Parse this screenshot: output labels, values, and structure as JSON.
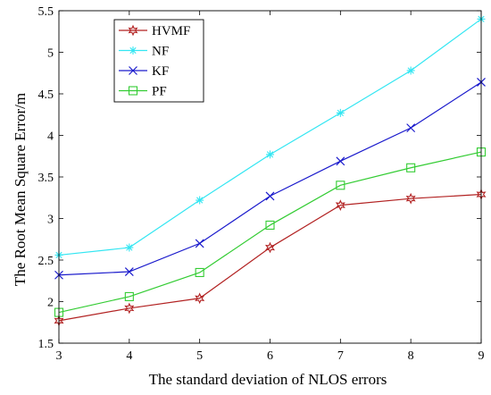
{
  "chart_data": {
    "type": "line",
    "title": "",
    "xlabel": "The standard deviation of NLOS errors",
    "ylabel": "The Root Mean Square Error/m",
    "x": [
      3,
      4,
      5,
      6,
      7,
      8,
      9
    ],
    "xlim": [
      3,
      9
    ],
    "ylim": [
      1.5,
      5.5
    ],
    "xticks": [
      3,
      4,
      5,
      6,
      7,
      8,
      9
    ],
    "yticks": [
      1.5,
      2,
      2.5,
      3,
      3.5,
      4,
      4.5,
      5,
      5.5
    ],
    "xtick_labels": [
      "3",
      "4",
      "5",
      "6",
      "7",
      "8",
      "9"
    ],
    "ytick_labels": [
      "1.5",
      "2",
      "2.5",
      "3",
      "3.5",
      "4",
      "4.5",
      "5",
      "5.5"
    ],
    "grid": false,
    "legend_position": "top-left",
    "series": [
      {
        "name": "HVMF",
        "color": "#b22222",
        "marker": "hexagram",
        "values": [
          1.77,
          1.92,
          2.04,
          2.65,
          3.16,
          3.24,
          3.29
        ]
      },
      {
        "name": "NF",
        "color": "#33e6f2",
        "marker": "asterisk",
        "values": [
          2.56,
          2.65,
          3.22,
          3.77,
          4.27,
          4.78,
          5.4
        ]
      },
      {
        "name": "KF",
        "color": "#1a1acc",
        "marker": "x",
        "values": [
          2.32,
          2.36,
          2.7,
          3.27,
          3.69,
          4.09,
          4.64
        ]
      },
      {
        "name": "PF",
        "color": "#33cc33",
        "marker": "square",
        "values": [
          1.87,
          2.06,
          2.35,
          2.92,
          3.4,
          3.61,
          3.8
        ]
      }
    ]
  }
}
